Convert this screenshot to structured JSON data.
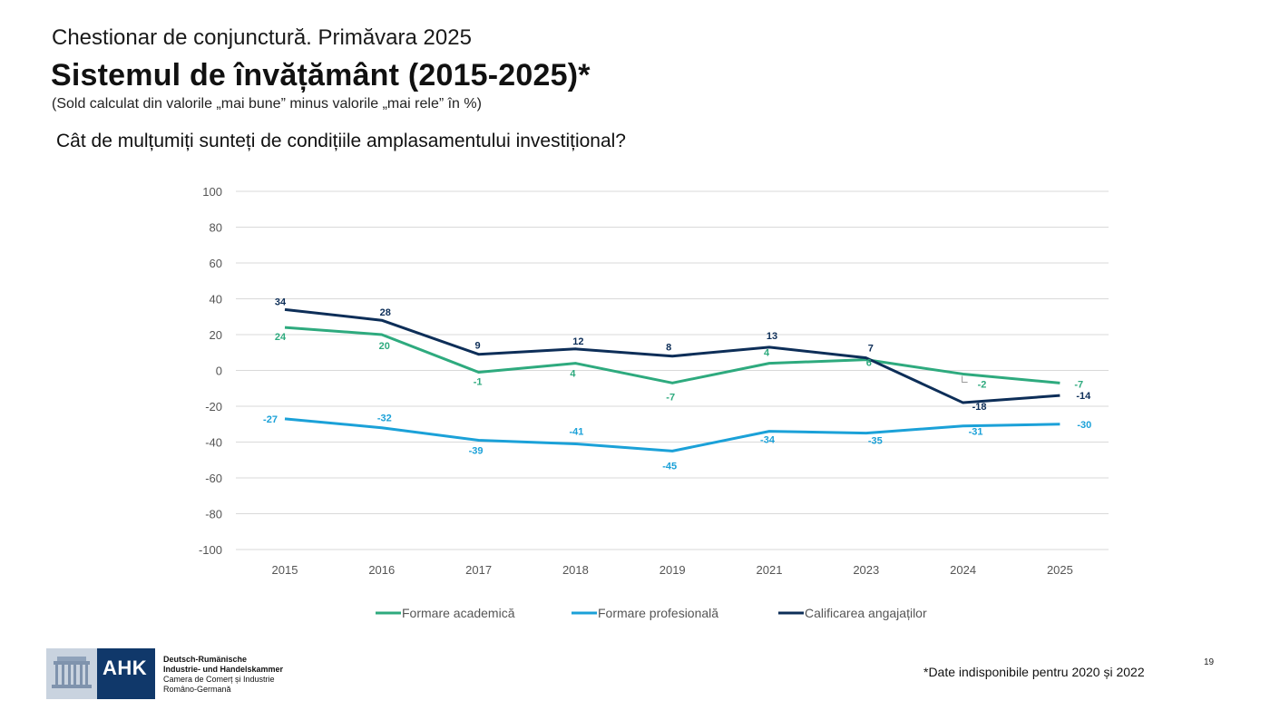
{
  "header": {
    "survey_label": "Chestionar de conjunctură. Primăvara 2025",
    "title": "Sistemul de învățământ (2015-2025)*",
    "subtitle": "(Sold calculat din valorile „mai bune” minus valorile „mai rele” în %)",
    "question": "Cât de mulțumiți sunteți de condițiile amplasamentului investițional?"
  },
  "chart_data": {
    "type": "line",
    "title": "",
    "xlabel": "",
    "ylabel": "",
    "categories": [
      "2015",
      "2016",
      "2017",
      "2018",
      "2019",
      "2021",
      "2023",
      "2024",
      "2025"
    ],
    "ylim": [
      -100,
      100
    ],
    "yticks": [
      100,
      80,
      60,
      40,
      20,
      0,
      -20,
      -40,
      -60,
      -80,
      -100
    ],
    "grid": true,
    "legend_position": "bottom",
    "data_labels": true,
    "series": [
      {
        "name": "Formare academică",
        "color": "#2eaa7e",
        "values": [
          24,
          20,
          -1,
          4,
          -7,
          4,
          6,
          -2,
          -7
        ]
      },
      {
        "name": "Formare profesională",
        "color": "#1ba1d8",
        "values": [
          -27,
          -32,
          -39,
          -41,
          -45,
          -34,
          -35,
          -31,
          -30
        ]
      },
      {
        "name": "Calificarea angajaților",
        "color": "#0d2e58",
        "values": [
          34,
          28,
          9,
          12,
          8,
          13,
          7,
          -18,
          -14
        ]
      }
    ]
  },
  "footer": {
    "footnote": "*Date indisponibile pentru 2020 și 2022",
    "page_number": "19",
    "logo_text": "AHK",
    "org_lines": [
      "Deutsch-Rumänische",
      "Industrie- und Handelskammer",
      "Camera de Comerț și Industrie",
      "Româno-Germană"
    ]
  }
}
